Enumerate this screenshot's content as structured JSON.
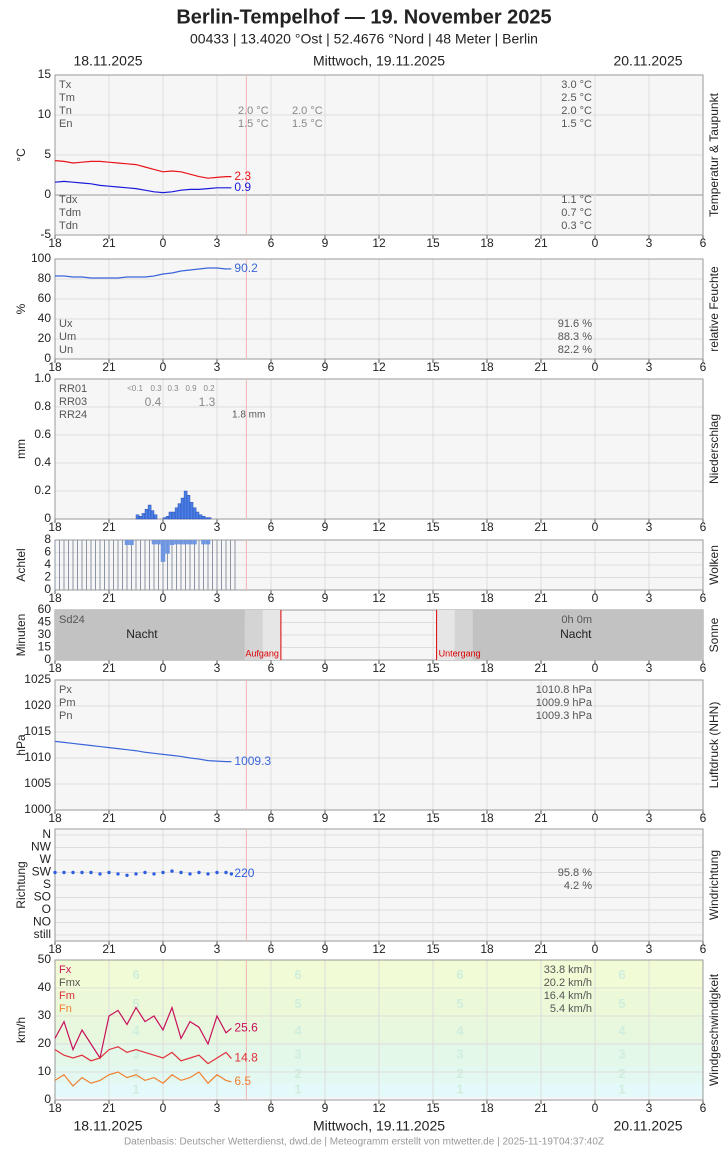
{
  "header": {
    "title": "Berlin-Tempelhof  —  19. November 2025",
    "subtitle": "00433  |  13.4020 °Ost  |  52.4676 °Nord  |  48 Meter  |  Berlin",
    "date_left": "18.11.2025",
    "date_center": "Mittwoch, 19.11.2025",
    "date_right": "20.11.2025"
  },
  "footer": "Datenbasis: Deutscher Wetterdienst, dwd.de | Meteogramm erstellt von mtwetter.de | 2025-11-19T04:37:40Z",
  "x_axis": {
    "xlim": [
      0,
      36
    ],
    "now": 10.63,
    "xticks": [
      {
        "value": 0,
        "label": "18"
      },
      {
        "value": 3,
        "label": "21"
      },
      {
        "value": 6,
        "label": "0"
      },
      {
        "value": 9,
        "label": "3"
      },
      {
        "value": 12,
        "label": "6"
      },
      {
        "value": 15,
        "label": "9"
      },
      {
        "value": 18,
        "label": "12"
      },
      {
        "value": 21,
        "label": "15"
      },
      {
        "value": 24,
        "label": "18"
      },
      {
        "value": 27,
        "label": "21"
      },
      {
        "value": 30,
        "label": "0"
      },
      {
        "value": 33,
        "label": "3"
      },
      {
        "value": 36,
        "label": "6"
      }
    ]
  },
  "chart_data": [
    {
      "type": "line",
      "ylabel": "°C",
      "side_label": "Temperatur & Taupunkt",
      "ylim": [
        -5,
        15
      ],
      "yticks": [
        -5,
        0,
        5,
        10,
        15
      ],
      "x": [
        0,
        0.5,
        1,
        1.5,
        2,
        2.5,
        3,
        3.5,
        4,
        4.5,
        5,
        5.5,
        6,
        6.5,
        7,
        7.5,
        8,
        8.5,
        9,
        9.5,
        9.8
      ],
      "series": [
        {
          "color": "#e8141b",
          "values": [
            4.3,
            4.2,
            4.0,
            4.1,
            4.2,
            4.2,
            4.1,
            4.0,
            3.9,
            3.8,
            3.5,
            3.2,
            2.9,
            3.0,
            2.9,
            2.6,
            2.3,
            2.1,
            2.2,
            2.3,
            2.3
          ]
        },
        {
          "color": "#1a1adb",
          "values": [
            1.6,
            1.7,
            1.6,
            1.5,
            1.4,
            1.2,
            1.1,
            1.0,
            0.9,
            0.8,
            0.6,
            0.4,
            0.3,
            0.4,
            0.6,
            0.7,
            0.7,
            0.8,
            0.9,
            0.9,
            0.9
          ]
        }
      ],
      "stats": [
        {
          "label": "Tx",
          "value": "3.0 °C"
        },
        {
          "label": "Tm",
          "value": "2.5 °C"
        },
        {
          "label": "Tn",
          "value": "2.0 °C",
          "columns": [
            "2.0 °C",
            "2.0 °C"
          ]
        },
        {
          "label": "En",
          "value": "1.5 °C",
          "columns": [
            "1.5 °C",
            "1.5 °C"
          ]
        }
      ],
      "stats_bottom": [
        {
          "label": "Tdx",
          "value": "1.1 °C"
        },
        {
          "label": "Tdm",
          "value": "0.7 °C"
        },
        {
          "label": "Tdn",
          "value": "0.3 °C"
        }
      ]
    },
    {
      "type": "line",
      "ylabel": "%",
      "side_label": "relative Feuchte",
      "ylim": [
        0,
        100
      ],
      "yticks": [
        0,
        20,
        40,
        60,
        80,
        100
      ],
      "x": [
        0,
        0.5,
        1,
        1.5,
        2,
        2.5,
        3,
        3.5,
        4,
        4.5,
        5,
        5.5,
        6,
        6.5,
        7,
        7.5,
        8,
        8.5,
        9,
        9.5,
        9.8
      ],
      "series": [
        {
          "color": "#3a66d8",
          "values": [
            83,
            83,
            82,
            82,
            81,
            81,
            81,
            81,
            82,
            82,
            82,
            83,
            85,
            86,
            88,
            89,
            90,
            91,
            91,
            90,
            90.2
          ]
        }
      ],
      "stats_bottom": [
        {
          "label": "Ux",
          "value": "91.6 %"
        },
        {
          "label": "Um",
          "value": "88.3 %"
        },
        {
          "label": "Un",
          "value": "82.2 %"
        }
      ]
    },
    {
      "type": "bar",
      "ylabel": "mm",
      "side_label": "Niederschlag",
      "ylim": [
        0,
        1
      ],
      "yticks": [
        0,
        0.2,
        0.4,
        0.6,
        0.8,
        {
          "value": 1,
          "label": "1.0"
        }
      ],
      "color": "#4a7fe8",
      "x": [
        4.5,
        4.67,
        4.83,
        5.0,
        5.17,
        5.33,
        5.5,
        5.67,
        5.83,
        6.0,
        6.17,
        6.33,
        6.5,
        6.67,
        6.83,
        7.0,
        7.17,
        7.33,
        7.5,
        7.67,
        7.83,
        8.0,
        8.17,
        8.33,
        8.5
      ],
      "values": [
        0.03,
        0.02,
        0.04,
        0.07,
        0.1,
        0.06,
        0.03,
        0,
        0,
        0.01,
        0.02,
        0.05,
        0.05,
        0.08,
        0.11,
        0.15,
        0.2,
        0.17,
        0.12,
        0.08,
        0.05,
        0.03,
        0.02,
        0.01,
        0.01
      ],
      "stats": [
        {
          "label": "RR01",
          "columns_small": [
            "<0.1",
            "0.3",
            "0.3",
            "0.9",
            "0.2"
          ]
        },
        {
          "label": "RR03",
          "columns": [
            "0.4",
            "1.3"
          ]
        },
        {
          "label": "RR24",
          "columns_text": [
            "1.8 mm"
          ]
        }
      ]
    },
    {
      "type": "bar",
      "ylabel": "Achtel",
      "side_label": "Wolken",
      "ylim": [
        0,
        8
      ],
      "yticks": [
        0,
        2,
        4,
        6,
        8
      ],
      "x": [
        0,
        0.25,
        0.5,
        0.75,
        1,
        1.25,
        1.5,
        1.75,
        2,
        2.25,
        2.5,
        2.75,
        3,
        3.25,
        3.5,
        3.75,
        4,
        4.25,
        4.5,
        4.75,
        5,
        5.25,
        5.5,
        5.75,
        6,
        6.25,
        6.5,
        6.75,
        7,
        7.25,
        7.5,
        7.75,
        8,
        8.25,
        8.5,
        8.75,
        9,
        9.25,
        9.5,
        9.75,
        10
      ],
      "series": [
        {
          "color": "#8a94a6",
          "values": [
            8,
            8,
            8,
            8,
            8,
            8,
            8,
            8,
            8,
            8,
            8,
            8,
            8,
            8,
            8,
            8,
            8,
            8,
            8,
            8,
            8,
            8,
            8,
            8,
            8,
            8,
            8,
            8,
            8,
            8,
            8,
            8,
            8,
            8,
            8,
            8,
            8,
            8,
            8,
            8,
            8
          ]
        },
        {
          "color": "#6f96e0",
          "from_top": true,
          "values": [
            null,
            null,
            null,
            null,
            null,
            null,
            null,
            null,
            null,
            null,
            null,
            null,
            null,
            null,
            null,
            null,
            7.2,
            7.2,
            null,
            null,
            null,
            null,
            7.3,
            7.3,
            4.5,
            5.8,
            7.2,
            7.3,
            7.3,
            7.3,
            7.3,
            7.3,
            null,
            7.3,
            7.3,
            null,
            null,
            null,
            null,
            null,
            null
          ]
        }
      ]
    },
    {
      "type": "sunshine",
      "ylabel": "Minuten",
      "side_label": "Sonne",
      "ylim": [
        0,
        60
      ],
      "yticks": [
        0,
        15,
        30,
        45,
        60
      ],
      "stats": [
        {
          "label": "Sd24",
          "value": "0h 0m"
        }
      ],
      "night_label": "Nacht",
      "sunrise": {
        "x": 12.55,
        "label": "Aufgang"
      },
      "sunset": {
        "x": 21.2,
        "label": "Untergang"
      }
    },
    {
      "type": "line",
      "ylabel": "hPa",
      "side_label": "Luftdruck (NHN)",
      "ylim": [
        1000,
        1025
      ],
      "yticks": [
        1000,
        1005,
        1010,
        1015,
        1020,
        1025
      ],
      "x": [
        0,
        0.5,
        1,
        1.5,
        2,
        2.5,
        3,
        3.5,
        4,
        4.5,
        5,
        5.5,
        6,
        6.5,
        7,
        7.5,
        8,
        8.5,
        9,
        9.5,
        9.8
      ],
      "series": [
        {
          "color": "#3a66d8",
          "values": [
            1013.2,
            1013.0,
            1012.8,
            1012.6,
            1012.4,
            1012.2,
            1012.0,
            1011.8,
            1011.6,
            1011.4,
            1011.1,
            1010.9,
            1010.7,
            1010.5,
            1010.3,
            1010.0,
            1009.8,
            1009.5,
            1009.4,
            1009.3,
            1009.3
          ]
        }
      ],
      "stats": [
        {
          "label": "Px",
          "value": "1010.8 hPa"
        },
        {
          "label": "Pm",
          "value": "1009.9 hPa"
        },
        {
          "label": "Pn",
          "value": "1009.3 hPa"
        }
      ]
    },
    {
      "type": "scatter",
      "ylabel": "Richtung",
      "side_label": "Windrichtung",
      "ylim": [
        0,
        360
      ],
      "yticks": [
        {
          "value": 0,
          "label": "still"
        },
        {
          "value": 45,
          "label": "NO"
        },
        {
          "value": 90,
          "label": "O"
        },
        {
          "value": 135,
          "label": "SO"
        },
        {
          "value": 180,
          "label": "S"
        },
        {
          "value": 225,
          "label": "SW"
        },
        {
          "value": 270,
          "label": "W"
        },
        {
          "value": 315,
          "label": "NW"
        },
        {
          "value": 360,
          "label": "N"
        }
      ],
      "color": "#2f5fe0",
      "x": [
        0,
        0.5,
        1,
        1.5,
        2,
        2.5,
        3,
        3.5,
        4,
        4.5,
        5,
        5.5,
        6,
        6.5,
        7,
        7.5,
        8,
        8.5,
        9,
        9.5,
        9.8
      ],
      "values": [
        225,
        225,
        225,
        225,
        225,
        220,
        225,
        220,
        215,
        220,
        225,
        220,
        225,
        230,
        225,
        220,
        225,
        220,
        225,
        225,
        220
      ],
      "stats": [
        {
          "value": "95.8 %"
        },
        {
          "value": "4.2 %"
        }
      ]
    },
    {
      "type": "line",
      "ylabel": "km/h",
      "side_label": "Windgeschwindigkeit",
      "ylim": [
        0,
        50
      ],
      "yticks": [
        0,
        10,
        20,
        30,
        40,
        50
      ],
      "beaufort": {
        "levels": [
          1,
          2,
          3,
          4,
          5,
          6
        ],
        "bounds": [
          1,
          6,
          12,
          20,
          29,
          39,
          50
        ],
        "colors": [
          "#e4f9fa",
          "#e2f8f1",
          "#e3f8e9",
          "#e7f8df",
          "#ecf9d9",
          "#f1fbd5"
        ]
      },
      "x": [
        0,
        0.5,
        1,
        1.5,
        2,
        2.5,
        3,
        3.5,
        4,
        4.5,
        5,
        5.5,
        6,
        6.5,
        7,
        7.5,
        8,
        8.5,
        9,
        9.5,
        9.8
      ],
      "series": [
        {
          "name": "Fx",
          "color": "#c8105a",
          "stat": "33.8 km/h",
          "values": [
            22,
            28,
            18,
            25,
            20,
            15,
            30,
            32,
            27,
            33,
            28,
            30,
            25,
            33,
            22,
            28,
            26,
            20,
            30,
            24,
            25.6
          ]
        },
        {
          "name": "Fmx",
          "color": "#555555",
          "stat": "20.2 km/h",
          "values": [
            null,
            null,
            null,
            null,
            null,
            null,
            null,
            null,
            null,
            null,
            null,
            null,
            null,
            null,
            null,
            null,
            null,
            null,
            null,
            null,
            null
          ]
        },
        {
          "name": "Fm",
          "color": "#e0303a",
          "stat": "16.4 km/h",
          "values": [
            18,
            16,
            15,
            16,
            14,
            15,
            18,
            19,
            17,
            18,
            17,
            16,
            15,
            17,
            14,
            15,
            16,
            13,
            15,
            17,
            14.8
          ]
        },
        {
          "name": "Fn",
          "color": "#f08030",
          "stat": "5.4 km/h",
          "values": [
            7,
            9,
            5,
            8,
            6,
            7,
            9,
            10,
            8,
            9,
            7,
            8,
            6,
            9,
            7,
            8,
            10,
            6,
            9,
            7,
            6.5
          ]
        }
      ]
    }
  ]
}
